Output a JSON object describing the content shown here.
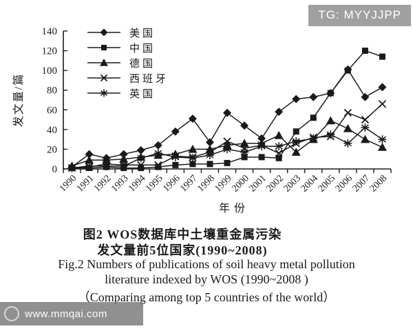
{
  "watermarks": {
    "top_right": "TG: MYYJJPP",
    "bottom_left": "www.mmqai.com"
  },
  "captions": {
    "cn_line1": "图2  WOS数据库中土壤重金属污染",
    "cn_line2": "发文量前5位国家(1990~2008)",
    "en_line1": "Fig.2  Numbers of publications of soil heavy metal pollution",
    "en_line2": "literature indexed by WOS (1990~2008 )",
    "en_line3": "（Comparing among top 5 countries of the world）"
  },
  "chart_data": {
    "type": "line",
    "title": "",
    "xlabel": "年份",
    "ylabel": "发文量/篇",
    "ylim": [
      0,
      140
    ],
    "ytick_step": 20,
    "grid": false,
    "legend_position": "top-left",
    "line_color": "#1a1a1a",
    "x": [
      "1990",
      "1991",
      "1992",
      "1993",
      "1994",
      "1995",
      "1996",
      "1997",
      "1998",
      "1999",
      "2000",
      "2001",
      "2002",
      "2003",
      "2004",
      "2005",
      "2006",
      "2007",
      "2008"
    ],
    "series": [
      {
        "name": "美国",
        "marker": "diamond",
        "values": [
          2,
          15,
          11,
          15,
          19,
          24,
          38,
          51,
          27,
          57,
          44,
          31,
          58,
          71,
          73,
          77,
          101,
          73,
          83
        ]
      },
      {
        "name": "中国",
        "marker": "square",
        "values": [
          1,
          1,
          2,
          1,
          1,
          2,
          4,
          5,
          5,
          6,
          12,
          12,
          11,
          38,
          52,
          77,
          100,
          120,
          114
        ]
      },
      {
        "name": "德国",
        "marker": "triangle",
        "values": [
          3,
          9,
          9,
          10,
          12,
          14,
          15,
          20,
          20,
          24,
          26,
          26,
          34,
          17,
          30,
          49,
          41,
          30,
          22
        ]
      },
      {
        "name": "西班牙",
        "marker": "x",
        "values": [
          1,
          2,
          5,
          4,
          4,
          4,
          13,
          12,
          17,
          28,
          21,
          24,
          16,
          26,
          32,
          33,
          57,
          50,
          66
        ]
      },
      {
        "name": "英国",
        "marker": "star",
        "values": [
          1,
          3,
          3,
          3,
          11,
          16,
          12,
          11,
          14,
          20,
          17,
          23,
          23,
          28,
          31,
          35,
          26,
          42,
          30
        ]
      }
    ]
  }
}
